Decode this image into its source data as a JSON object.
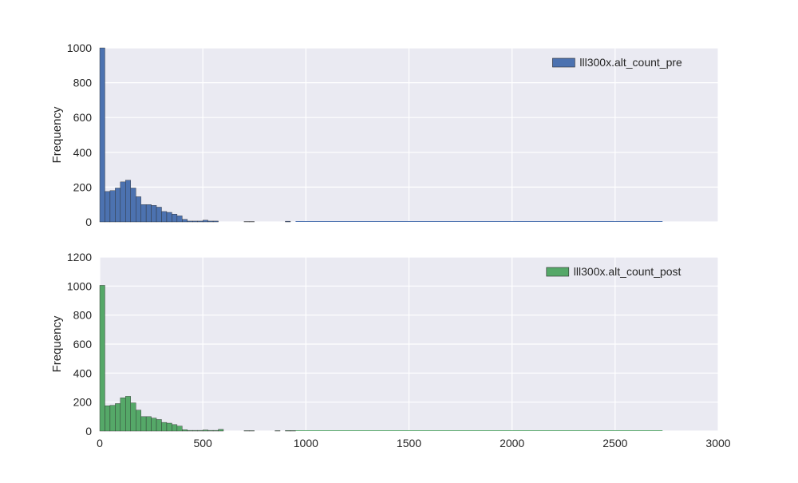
{
  "chart_data": [
    {
      "type": "bar",
      "title": "",
      "xlabel": "",
      "ylabel": "Frequency",
      "xlim": [
        0,
        3000
      ],
      "ylim": [
        0,
        1000
      ],
      "yticks": [
        "0",
        "200",
        "400",
        "600",
        "800",
        "1000"
      ],
      "xticks": [
        "0",
        "500",
        "1000",
        "1500",
        "2000",
        "2500",
        "3000"
      ],
      "show_xtick_labels": false,
      "grid": true,
      "legend": "top-right",
      "bin_width": 25,
      "bin_starts": [
        0,
        25,
        50,
        75,
        100,
        125,
        150,
        175,
        200,
        225,
        250,
        275,
        300,
        325,
        350,
        375,
        400,
        425,
        450,
        475,
        500,
        525,
        550,
        575,
        600,
        625,
        650,
        675,
        700,
        725,
        750,
        775,
        800,
        825,
        850,
        875,
        900,
        925
      ],
      "series": [
        {
          "name": "lll300x.alt_count_pre",
          "color": "#4c72b0",
          "values": [
            1000,
            175,
            180,
            195,
            230,
            240,
            195,
            145,
            100,
            100,
            95,
            85,
            60,
            55,
            45,
            35,
            15,
            5,
            5,
            5,
            10,
            5,
            5,
            0,
            0,
            0,
            0,
            0,
            2,
            2,
            0,
            0,
            0,
            0,
            0,
            0,
            4,
            0
          ]
        }
      ],
      "baseline_to": 2730
    },
    {
      "type": "bar",
      "title": "",
      "xlabel": "",
      "ylabel": "Frequency",
      "xlim": [
        0,
        3000
      ],
      "ylim": [
        0,
        1200
      ],
      "yticks": [
        "0",
        "200",
        "400",
        "600",
        "800",
        "1000",
        "1200"
      ],
      "xticks": [
        "0",
        "500",
        "1000",
        "1500",
        "2000",
        "2500",
        "3000"
      ],
      "show_xtick_labels": true,
      "grid": true,
      "legend": "top-right",
      "bin_width": 25,
      "bin_starts": [
        0,
        25,
        50,
        75,
        100,
        125,
        150,
        175,
        200,
        225,
        250,
        275,
        300,
        325,
        350,
        375,
        400,
        425,
        450,
        475,
        500,
        525,
        550,
        575,
        600,
        625,
        650,
        675,
        700,
        725,
        750,
        775,
        800,
        825,
        850,
        875,
        900,
        925
      ],
      "series": [
        {
          "name": "lll300x.alt_count_post",
          "color": "#55a868",
          "values": [
            1005,
            175,
            178,
            190,
            230,
            240,
            195,
            145,
            100,
            100,
            90,
            80,
            60,
            55,
            45,
            35,
            10,
            5,
            5,
            5,
            8,
            5,
            5,
            12,
            0,
            0,
            0,
            0,
            3,
            3,
            0,
            0,
            0,
            0,
            3,
            0,
            4,
            4
          ]
        }
      ],
      "baseline_to": 2730
    }
  ]
}
